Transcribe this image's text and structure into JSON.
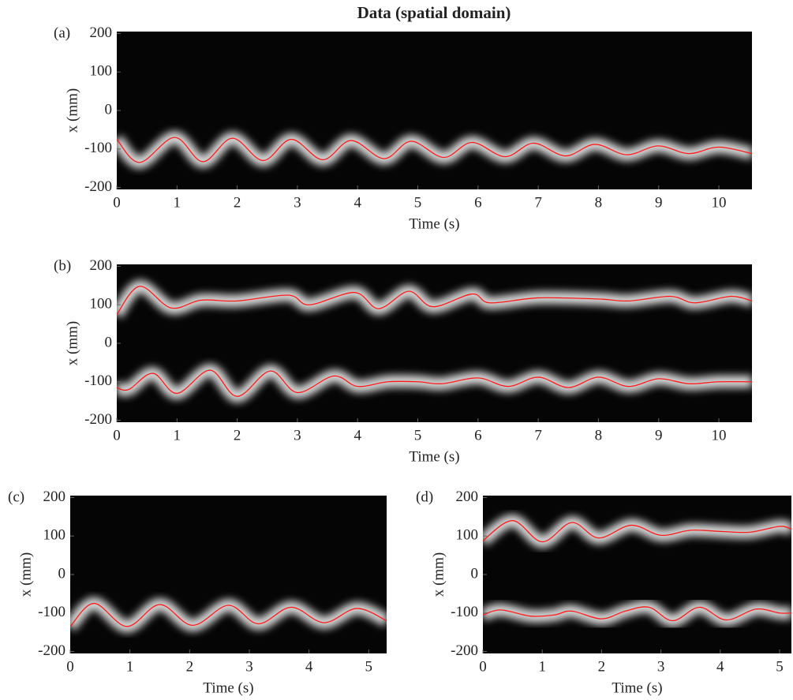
{
  "chart_data": [
    {
      "type": "line",
      "title": "Data (spatial domain)",
      "label": "(a)",
      "xlabel": "Time (s)",
      "ylabel": "x (mm)",
      "xlim": [
        0,
        10.55
      ],
      "xticks": [
        0,
        1,
        2,
        3,
        4,
        5,
        6,
        7,
        8,
        9,
        10
      ],
      "ylim": [
        -205,
        205
      ],
      "yticks": [
        -200,
        -100,
        0,
        100,
        200
      ],
      "series": [
        {
          "color": "#ff1a1a",
          "x": [
            0,
            0.38,
            0.96,
            1.43,
            1.92,
            2.43,
            2.9,
            3.42,
            3.89,
            4.44,
            4.89,
            5.43,
            5.9,
            6.45,
            6.92,
            7.45,
            7.94,
            8.47,
            8.99,
            9.5,
            10,
            10.55
          ],
          "values": [
            -75,
            -135,
            -70,
            -133,
            -72,
            -130,
            -75,
            -128,
            -78,
            -125,
            -80,
            -122,
            -83,
            -120,
            -85,
            -118,
            -88,
            -115,
            -92,
            -112,
            -95,
            -112
          ]
        }
      ]
    },
    {
      "type": "line",
      "label": "(b)",
      "xlabel": "Time (s)",
      "ylabel": "x (mm)",
      "xlim": [
        0,
        10.55
      ],
      "xticks": [
        0,
        1,
        2,
        3,
        4,
        5,
        6,
        7,
        8,
        9,
        10
      ],
      "ylim": [
        -205,
        205
      ],
      "yticks": [
        -200,
        -100,
        0,
        100,
        200
      ],
      "series": [
        {
          "color": "#ff1a1a",
          "x": [
            0,
            0.38,
            0.9,
            1.4,
            2,
            2.85,
            3.2,
            3.95,
            4.35,
            4.85,
            5.25,
            5.9,
            6.2,
            7,
            8,
            8.5,
            9.2,
            9.6,
            10.2,
            10.55
          ],
          "values": [
            75,
            148,
            92,
            112,
            110,
            125,
            100,
            132,
            90,
            135,
            95,
            128,
            105,
            118,
            115,
            110,
            122,
            105,
            122,
            110
          ]
        },
        {
          "color": "#ff1a1a",
          "x": [
            0,
            0.2,
            0.6,
            1,
            1.55,
            2,
            2.55,
            3,
            3.6,
            4,
            4.5,
            5,
            5.4,
            6,
            6.5,
            7,
            7.5,
            8,
            8.5,
            9,
            9.5,
            10,
            10.55
          ],
          "values": [
            -115,
            -120,
            -78,
            -130,
            -70,
            -138,
            -72,
            -128,
            -85,
            -112,
            -100,
            -100,
            -105,
            -90,
            -112,
            -88,
            -115,
            -88,
            -112,
            -92,
            -105,
            -100,
            -100
          ]
        }
      ]
    },
    {
      "type": "line",
      "label": "(c)",
      "xlabel": "Time (s)",
      "ylabel": "x (mm)",
      "xlim": [
        0,
        5.3
      ],
      "xticks": [
        0,
        1,
        2,
        3,
        4,
        5
      ],
      "ylim": [
        -205,
        205
      ],
      "yticks": [
        -200,
        -100,
        0,
        100,
        200
      ],
      "series": [
        {
          "color": "#ff1a1a",
          "x": [
            0,
            0.4,
            0.95,
            1.5,
            2.05,
            2.65,
            3.15,
            3.7,
            4.25,
            4.8,
            5.3
          ],
          "values": [
            -135,
            -75,
            -135,
            -78,
            -132,
            -80,
            -128,
            -85,
            -125,
            -88,
            -120
          ]
        }
      ]
    },
    {
      "type": "line",
      "label": "(d)",
      "xlabel": "Time (s)",
      "ylabel": "x (mm)",
      "xlim": [
        0,
        5.2
      ],
      "xticks": [
        0,
        1,
        2,
        3,
        4,
        5
      ],
      "ylim": [
        -205,
        205
      ],
      "yticks": [
        -200,
        -100,
        0,
        100,
        200
      ],
      "series": [
        {
          "color": "#ff1a1a",
          "x": [
            0,
            0.5,
            1,
            1.5,
            1.95,
            2.5,
            3,
            3.5,
            4,
            4.5,
            5,
            5.2
          ],
          "values": [
            88,
            140,
            85,
            135,
            95,
            128,
            102,
            115,
            112,
            110,
            125,
            118
          ]
        },
        {
          "color": "#ff1a1a",
          "x": [
            0,
            0.3,
            0.8,
            1.2,
            1.5,
            2,
            2.4,
            2.8,
            3.2,
            3.65,
            4.1,
            4.6,
            5,
            5.2
          ],
          "values": [
            -105,
            -92,
            -108,
            -105,
            -95,
            -115,
            -95,
            -85,
            -120,
            -85,
            -118,
            -90,
            -100,
            -100
          ]
        }
      ]
    }
  ]
}
